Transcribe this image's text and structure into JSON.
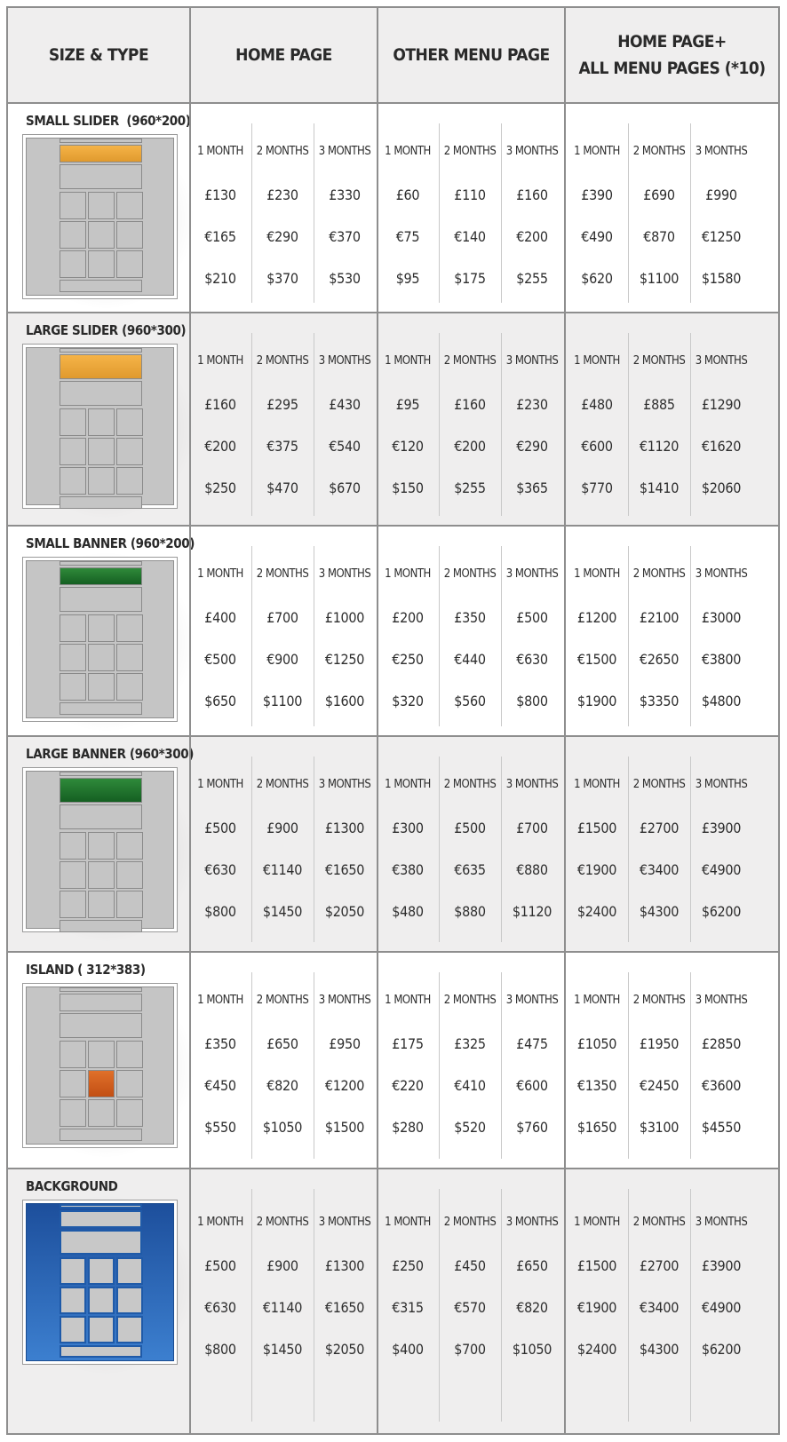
{
  "header": {
    "col1": "SIZE & TYPE",
    "col2": "HOME PAGE",
    "col3": "OTHER MENU PAGE",
    "col4": "HOME PAGE+\nALL MENU PAGES (*10)"
  },
  "rows": [
    {
      "label": "SMALL SLIDER  (960*200)",
      "thumb": "small-slider",
      "periods": [
        "1 MONTH",
        "2 MONTHS",
        "3 MONTHS"
      ],
      "home": {
        "gbp": [
          "£130",
          "£230",
          "£330"
        ],
        "eur": [
          "€165",
          "€290",
          "€370"
        ],
        "usd": [
          "$210",
          "$370",
          "$530"
        ]
      },
      "other": {
        "gbp": [
          "£60",
          "£110",
          "£160"
        ],
        "eur": [
          "€75",
          "€140",
          "€200"
        ],
        "usd": [
          "$95",
          "$175",
          "$255"
        ]
      },
      "all": {
        "gbp": [
          "£390",
          "£690",
          "£990"
        ],
        "eur": [
          "€490",
          "€870",
          "€1250"
        ],
        "usd": [
          "$620",
          "$1100",
          "$1580"
        ]
      }
    },
    {
      "label": "LARGE SLIDER (960*300)",
      "thumb": "large-slider",
      "periods": [
        "1 MONTH",
        "2 MONTHS",
        "3 MONTHS"
      ],
      "home": {
        "gbp": [
          "£160",
          "£295",
          "£430"
        ],
        "eur": [
          "€200",
          "€375",
          "€540"
        ],
        "usd": [
          "$250",
          "$470",
          "$670"
        ]
      },
      "other": {
        "gbp": [
          "£95",
          "£160",
          "£230"
        ],
        "eur": [
          "€120",
          "€200",
          "€290"
        ],
        "usd": [
          "$150",
          "$255",
          "$365"
        ]
      },
      "all": {
        "gbp": [
          "£480",
          "£885",
          "£1290"
        ],
        "eur": [
          "€600",
          "€1120",
          "€1620"
        ],
        "usd": [
          "$770",
          "$1410",
          "$2060"
        ]
      }
    },
    {
      "label": "SMALL BANNER (960*200)",
      "thumb": "small-banner",
      "periods": [
        "1 MONTH",
        "2 MONTHS",
        "3 MONTHS"
      ],
      "home": {
        "gbp": [
          "£400",
          "£700",
          "£1000"
        ],
        "eur": [
          "€500",
          "€900",
          "€1250"
        ],
        "usd": [
          "$650",
          "$1100",
          "$1600"
        ]
      },
      "other": {
        "gbp": [
          "£200",
          "£350",
          "£500"
        ],
        "eur": [
          "€250",
          "€440",
          "€630"
        ],
        "usd": [
          "$320",
          "$560",
          "$800"
        ]
      },
      "all": {
        "gbp": [
          "£1200",
          "£2100",
          "£3000"
        ],
        "eur": [
          "€1500",
          "€2650",
          "€3800"
        ],
        "usd": [
          "$1900",
          "$3350",
          "$4800"
        ]
      }
    },
    {
      "label": "LARGE BANNER (960*300)",
      "thumb": "large-banner",
      "periods": [
        "1 MONTH",
        "2 MONTHS",
        "3 MONTHS"
      ],
      "home": {
        "gbp": [
          "£500",
          "£900",
          "£1300"
        ],
        "eur": [
          "€630",
          "€1140",
          "€1650"
        ],
        "usd": [
          "$800",
          "$1450",
          "$2050"
        ]
      },
      "other": {
        "gbp": [
          "£300",
          "£500",
          "£700"
        ],
        "eur": [
          "€380",
          "€635",
          "€880"
        ],
        "usd": [
          "$480",
          "$880",
          "$1120"
        ]
      },
      "all": {
        "gbp": [
          "£1500",
          "£2700",
          "£3900"
        ],
        "eur": [
          "€1900",
          "€3400",
          "€4900"
        ],
        "usd": [
          "$2400",
          "$4300",
          "$6200"
        ]
      }
    },
    {
      "label": "ISLAND ( 312*383)",
      "thumb": "island",
      "periods": [
        "1 MONTH",
        "2 MONTHS",
        "3 MONTHS"
      ],
      "home": {
        "gbp": [
          "£350",
          "£650",
          "£950"
        ],
        "eur": [
          "€450",
          "€820",
          "€1200"
        ],
        "usd": [
          "$550",
          "$1050",
          "$1500"
        ]
      },
      "other": {
        "gbp": [
          "£175",
          "£325",
          "£475"
        ],
        "eur": [
          "€220",
          "€410",
          "€600"
        ],
        "usd": [
          "$280",
          "$520",
          "$760"
        ]
      },
      "all": {
        "gbp": [
          "£1050",
          "£1950",
          "£2850"
        ],
        "eur": [
          "€1350",
          "€2450",
          "€3600"
        ],
        "usd": [
          "$1650",
          "$3100",
          "$4550"
        ]
      }
    },
    {
      "label": "BACKGROUND",
      "thumb": "background",
      "periods": [
        "1 MONTH",
        "2 MONTHS",
        "3 MONTHS"
      ],
      "home": {
        "gbp": [
          "£500",
          "£900",
          "£1300"
        ],
        "eur": [
          "€630",
          "€1140",
          "€1650"
        ],
        "usd": [
          "$800",
          "$1450",
          "$2050"
        ]
      },
      "other": {
        "gbp": [
          "£250",
          "£450",
          "£650"
        ],
        "eur": [
          "€315",
          "€570",
          "€820"
        ],
        "usd": [
          "$400",
          "$700",
          "$1050"
        ]
      },
      "all": {
        "gbp": [
          "£1500",
          "£2700",
          "£3900"
        ],
        "eur": [
          "€1900",
          "€3400",
          "€4900"
        ],
        "usd": [
          "$2400",
          "$4300",
          "$6200"
        ]
      }
    }
  ]
}
